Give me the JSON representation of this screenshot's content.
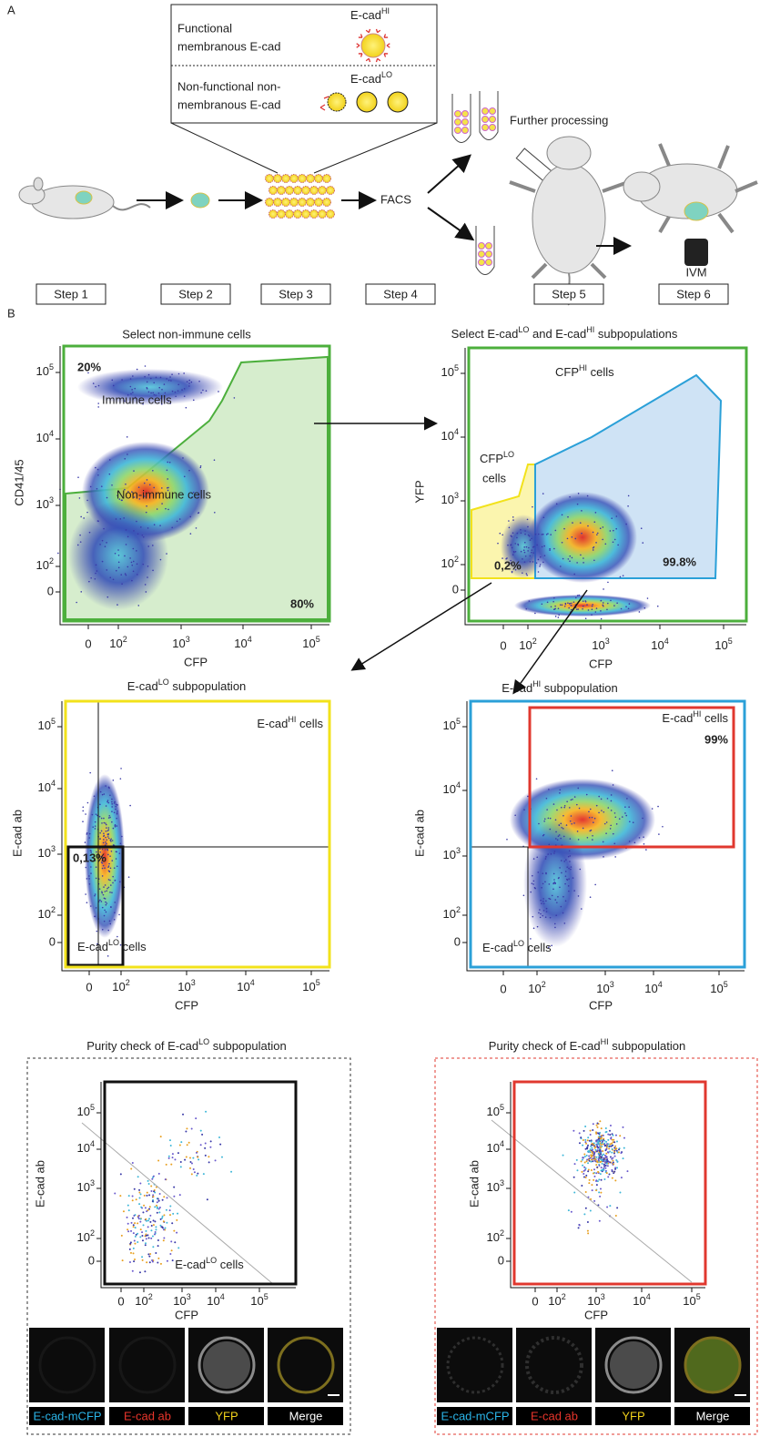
{
  "panel_a": {
    "label": "A",
    "functional": [
      "Functional",
      "membranous E-cad"
    ],
    "functional_tag": [
      {
        "text": "E-cad"
      },
      {
        "text": "HI",
        "sup": true
      }
    ],
    "nonfunctional": [
      "Non-functional non-",
      "membranous E-cad"
    ],
    "nonfunctional_tag": [
      {
        "text": "E-cad"
      },
      {
        "text": "LO",
        "sup": true
      }
    ],
    "facs": "FACS",
    "further": "Further processing",
    "ivm": "IVM",
    "steps": [
      "Step 1",
      "Step 2",
      "Step 3",
      "Step 4",
      "Step 5",
      "Step 6"
    ]
  },
  "panel_b": {
    "label": "B",
    "plots": [
      {
        "title": "Select non-immune cells",
        "y_label": "CD41/45",
        "x_label": "CFP",
        "yticks": [
          [
            {
              "text": "10"
            },
            {
              "text": "5",
              "sup": true
            }
          ],
          [
            {
              "text": "10"
            },
            {
              "text": "4",
              "sup": true
            }
          ],
          [
            {
              "text": "10"
            },
            {
              "text": "3",
              "sup": true
            }
          ],
          [
            {
              "text": "10"
            },
            {
              "text": "2",
              "sup": true
            }
          ],
          "0"
        ],
        "xticks": [
          "0",
          [
            {
              "text": "10"
            },
            {
              "text": "2",
              "sup": true
            }
          ],
          [
            {
              "text": "10"
            },
            {
              "text": "3",
              "sup": true
            }
          ],
          [
            {
              "text": "10"
            },
            {
              "text": "4",
              "sup": true
            }
          ],
          [
            {
              "text": "10"
            },
            {
              "text": "5",
              "sup": true
            }
          ]
        ],
        "labels": [
          "20%",
          "Immune cells",
          "Non-immune cells",
          "80%"
        ]
      },
      {
        "title": [
          {
            "text": "Select E-cad"
          },
          {
            "text": "LO",
            "sup": true
          },
          {
            "text": " and E-cad"
          },
          {
            "text": "HI",
            "sup": true
          },
          {
            "text": " subpopulations"
          }
        ],
        "y_label": "YFP",
        "x_label": "CFP",
        "yticks": [
          [
            {
              "text": "10"
            },
            {
              "text": "5",
              "sup": true
            }
          ],
          [
            {
              "text": "10"
            },
            {
              "text": "4",
              "sup": true
            }
          ],
          [
            {
              "text": "10"
            },
            {
              "text": "3",
              "sup": true
            }
          ],
          [
            {
              "text": "10"
            },
            {
              "text": "2",
              "sup": true
            }
          ],
          "0"
        ],
        "xticks": [
          "0",
          [
            {
              "text": "10"
            },
            {
              "text": "2",
              "sup": true
            }
          ],
          [
            {
              "text": "10"
            },
            {
              "text": "3",
              "sup": true
            }
          ],
          [
            {
              "text": "10"
            },
            {
              "text": "4",
              "sup": true
            }
          ],
          [
            {
              "text": "10"
            },
            {
              "text": "5",
              "sup": true
            }
          ]
        ],
        "labels": [
          [
            {
              "text": "CFP"
            },
            {
              "text": "HI",
              "sup": true
            },
            {
              "text": " cells"
            }
          ],
          [
            {
              "text": "CFP"
            },
            {
              "text": "LO",
              "sup": true
            }
          ],
          "cells",
          "0,2%",
          "99.8%"
        ]
      },
      {
        "title": [
          {
            "text": "E-cad"
          },
          {
            "text": "LO",
            "sup": true
          },
          {
            "text": " subpopulation"
          }
        ],
        "y_label": "E-cad ab",
        "x_label": "CFP",
        "yticks": [
          [
            {
              "text": "10"
            },
            {
              "text": "5",
              "sup": true
            }
          ],
          [
            {
              "text": "10"
            },
            {
              "text": "4",
              "sup": true
            }
          ],
          [
            {
              "text": "10"
            },
            {
              "text": "3",
              "sup": true
            }
          ],
          [
            {
              "text": "10"
            },
            {
              "text": "2",
              "sup": true
            }
          ],
          "0"
        ],
        "xticks": [
          "0",
          [
            {
              "text": "10"
            },
            {
              "text": "2",
              "sup": true
            }
          ],
          [
            {
              "text": "10"
            },
            {
              "text": "3",
              "sup": true
            }
          ],
          [
            {
              "text": "10"
            },
            {
              "text": "4",
              "sup": true
            }
          ],
          [
            {
              "text": "10"
            },
            {
              "text": "5",
              "sup": true
            }
          ]
        ],
        "labels": [
          [
            {
              "text": "E-cad"
            },
            {
              "text": "HI",
              "sup": true
            },
            {
              "text": " cells"
            }
          ],
          "0,13%",
          [
            {
              "text": "E-cad"
            },
            {
              "text": "LO",
              "sup": true
            },
            {
              "text": " cells"
            }
          ]
        ]
      },
      {
        "title": [
          {
            "text": "E-cad"
          },
          {
            "text": "HI",
            "sup": true
          },
          {
            "text": " subpopulation"
          }
        ],
        "y_label": "E-cad ab",
        "x_label": "CFP",
        "yticks": [
          [
            {
              "text": "10"
            },
            {
              "text": "5",
              "sup": true
            }
          ],
          [
            {
              "text": "10"
            },
            {
              "text": "4",
              "sup": true
            }
          ],
          [
            {
              "text": "10"
            },
            {
              "text": "3",
              "sup": true
            }
          ],
          [
            {
              "text": "10"
            },
            {
              "text": "2",
              "sup": true
            }
          ],
          "0"
        ],
        "xticks": [
          "0",
          [
            {
              "text": "10"
            },
            {
              "text": "2",
              "sup": true
            }
          ],
          [
            {
              "text": "10"
            },
            {
              "text": "3",
              "sup": true
            }
          ],
          [
            {
              "text": "10"
            },
            {
              "text": "4",
              "sup": true
            }
          ],
          [
            {
              "text": "10"
            },
            {
              "text": "5",
              "sup": true
            }
          ]
        ],
        "labels": [
          [
            {
              "text": "E-cad"
            },
            {
              "text": "HI",
              "sup": true
            },
            {
              "text": " cells"
            }
          ],
          "99%",
          [
            {
              "text": "E-cad"
            },
            {
              "text": "LO",
              "sup": true
            },
            {
              "text": " cells"
            }
          ]
        ]
      },
      {
        "title": [
          {
            "text": "Purity check of E-cad"
          },
          {
            "text": "LO",
            "sup": true
          },
          {
            "text": " subpopulation"
          }
        ],
        "y_label": "E-cad ab",
        "x_label": "CFP",
        "yticks": [
          [
            {
              "text": "10"
            },
            {
              "text": "5",
              "sup": true
            }
          ],
          [
            {
              "text": "10"
            },
            {
              "text": "4",
              "sup": true
            }
          ],
          [
            {
              "text": "10"
            },
            {
              "text": "3",
              "sup": true
            }
          ],
          [
            {
              "text": "10"
            },
            {
              "text": "2",
              "sup": true
            }
          ],
          "0"
        ],
        "xticks": [
          "0",
          [
            {
              "text": "10"
            },
            {
              "text": "2",
              "sup": true
            }
          ],
          [
            {
              "text": "10"
            },
            {
              "text": "3",
              "sup": true
            }
          ],
          [
            {
              "text": "10"
            },
            {
              "text": "4",
              "sup": true
            }
          ],
          [
            {
              "text": "10"
            },
            {
              "text": "5",
              "sup": true
            }
          ]
        ],
        "labels": [
          [
            {
              "text": "E-cad"
            },
            {
              "text": "LO",
              "sup": true
            },
            {
              "text": " cells"
            }
          ]
        ],
        "tiles": [
          {
            "label": "E-cad-mCFP",
            "color": "#2bb5e8"
          },
          {
            "label": "E-cad ab",
            "color": "#e8352b"
          },
          {
            "label": "YFP",
            "color": "#f2d21b"
          },
          {
            "label": "Merge",
            "color": "#ffffff"
          }
        ]
      },
      {
        "title": [
          {
            "text": "Purity check of E-cad"
          },
          {
            "text": "HI",
            "sup": true
          },
          {
            "text": " subpopulation"
          }
        ],
        "y_label": "E-cad ab",
        "x_label": "CFP",
        "yticks": [
          [
            {
              "text": "10"
            },
            {
              "text": "5",
              "sup": true
            }
          ],
          [
            {
              "text": "10"
            },
            {
              "text": "4",
              "sup": true
            }
          ],
          [
            {
              "text": "10"
            },
            {
              "text": "3",
              "sup": true
            }
          ],
          [
            {
              "text": "10"
            },
            {
              "text": "2",
              "sup": true
            }
          ],
          "0"
        ],
        "xticks": [
          "0",
          [
            {
              "text": "10"
            },
            {
              "text": "2",
              "sup": true
            }
          ],
          [
            {
              "text": "10"
            },
            {
              "text": "3",
              "sup": true
            }
          ],
          [
            {
              "text": "10"
            },
            {
              "text": "4",
              "sup": true
            }
          ],
          [
            {
              "text": "10"
            },
            {
              "text": "5",
              "sup": true
            }
          ]
        ],
        "labels": [],
        "tiles": [
          {
            "label": "E-cad-mCFP",
            "color": "#2bb5e8"
          },
          {
            "label": "E-cad ab",
            "color": "#e8352b"
          },
          {
            "label": "YFP",
            "color": "#f2d21b"
          },
          {
            "label": "Merge",
            "color": "#ffffff"
          }
        ]
      }
    ]
  }
}
